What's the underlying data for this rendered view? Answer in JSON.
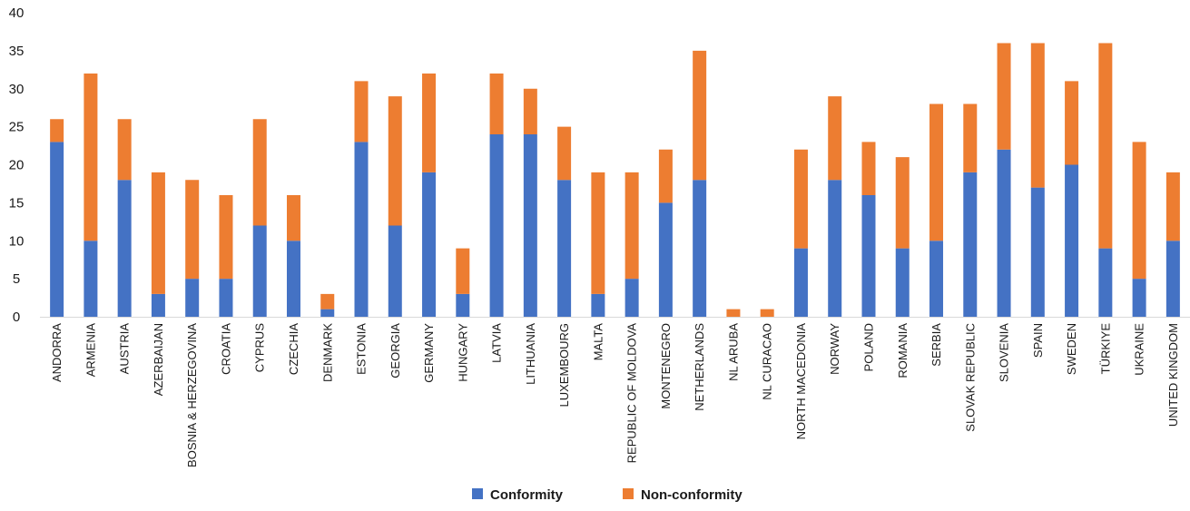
{
  "chart_data": {
    "type": "bar",
    "stacked": true,
    "title": "",
    "xlabel": "",
    "ylabel": "",
    "ylim": [
      0,
      40
    ],
    "yticks": [
      0,
      5,
      10,
      15,
      20,
      25,
      30,
      35,
      40
    ],
    "grid": false,
    "legend_position": "bottom-center",
    "categories": [
      "ANDORRA",
      "ARMENIA",
      "AUSTRIA",
      "AZERBAIJAN",
      "BOSNIA & HERZEGOVINA",
      "CROATIA",
      "CYPRUS",
      "CZECHIA",
      "DENMARK",
      "ESTONIA",
      "GEORGIA",
      "GERMANY",
      "HUNGARY",
      "LATVIA",
      "LITHUANIA",
      "LUXEMBOURG",
      "MALTA",
      "REPUBLIC OF MOLDOVA",
      "MONTENEGRO",
      "NETHERLANDS",
      "NL ARUBA",
      "NL CURACAO",
      "NORTH MACEDONIA",
      "NORWAY",
      "POLAND",
      "ROMANIA",
      "SERBIA",
      "SLOVAK REPUBLIC",
      "SLOVENIA",
      "SPAIN",
      "SWEDEN",
      "TÜRKIYE",
      "UKRAINE",
      "UNITED KINGDOM"
    ],
    "series": [
      {
        "name": "Conformity",
        "color": "#4472c4",
        "values": [
          23,
          10,
          18,
          3,
          5,
          5,
          12,
          10,
          1,
          23,
          12,
          19,
          3,
          24,
          24,
          18,
          3,
          5,
          15,
          18,
          0,
          0,
          9,
          18,
          16,
          9,
          10,
          19,
          22,
          17,
          20,
          9,
          5,
          10
        ]
      },
      {
        "name": "Non-conformity",
        "color": "#ed7d31",
        "values": [
          3,
          22,
          8,
          16,
          13,
          11,
          14,
          6,
          2,
          8,
          17,
          13,
          6,
          8,
          6,
          7,
          16,
          14,
          7,
          17,
          1,
          1,
          13,
          11,
          7,
          12,
          18,
          9,
          14,
          19,
          11,
          27,
          18,
          9
        ]
      }
    ]
  }
}
